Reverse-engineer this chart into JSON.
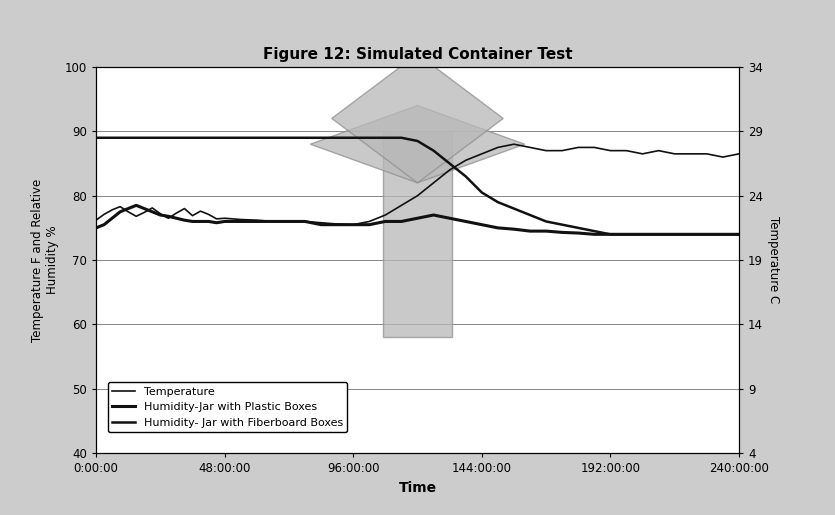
{
  "title": "Figure 12: Simulated Container Test",
  "xlabel": "Time",
  "ylabel_left": "Temperature F and Relative\nHumidity %",
  "ylabel_right": "Temperature C",
  "ylim_left": [
    40,
    100
  ],
  "ylim_right": [
    4,
    34
  ],
  "yticks_left": [
    40,
    50,
    60,
    70,
    80,
    90,
    100
  ],
  "yticks_right": [
    4,
    9,
    14,
    19,
    24,
    29,
    34
  ],
  "xtick_hours": [
    0,
    48,
    96,
    144,
    192,
    240
  ],
  "xtick_labels": [
    "0:00:00",
    "48:00:00",
    "96:00:00",
    "144:00:00",
    "192:00:00",
    "240:00:00"
  ],
  "time_hours": [
    0,
    3,
    6,
    9,
    12,
    15,
    18,
    21,
    24,
    27,
    30,
    33,
    36,
    39,
    42,
    45,
    48,
    54,
    60,
    66,
    72,
    78,
    84,
    90,
    96,
    102,
    108,
    114,
    120,
    126,
    132,
    138,
    144,
    150,
    156,
    162,
    168,
    174,
    180,
    186,
    192,
    198,
    204,
    210,
    216,
    222,
    228,
    234,
    240
  ],
  "temperature": [
    76.2,
    77.1,
    77.8,
    78.3,
    77.5,
    76.8,
    77.4,
    78.1,
    77.2,
    76.5,
    77.3,
    78.0,
    76.9,
    77.6,
    77.1,
    76.4,
    76.5,
    76.3,
    76.2,
    76.0,
    76.0,
    76.0,
    75.8,
    75.6,
    75.5,
    76.0,
    77.0,
    78.5,
    80.0,
    82.0,
    84.0,
    85.5,
    86.5,
    87.5,
    88.0,
    87.5,
    87.0,
    87.0,
    87.5,
    87.5,
    87.0,
    87.0,
    86.5,
    87.0,
    86.5,
    86.5,
    86.5,
    86.0,
    86.5
  ],
  "humidity_plastic": [
    75.0,
    75.5,
    76.5,
    77.5,
    78.0,
    78.5,
    78.0,
    77.5,
    77.0,
    76.8,
    76.5,
    76.2,
    76.0,
    76.0,
    76.0,
    75.8,
    76.0,
    76.0,
    76.0,
    76.0,
    76.0,
    76.0,
    75.5,
    75.5,
    75.5,
    75.5,
    76.0,
    76.0,
    76.5,
    77.0,
    76.5,
    76.0,
    75.5,
    75.0,
    74.8,
    74.5,
    74.5,
    74.3,
    74.2,
    74.0,
    74.0,
    74.0,
    74.0,
    74.0,
    74.0,
    74.0,
    74.0,
    74.0,
    74.0
  ],
  "humidity_fiber": [
    89.0,
    89.0,
    89.0,
    89.0,
    89.0,
    89.0,
    89.0,
    89.0,
    89.0,
    89.0,
    89.0,
    89.0,
    89.0,
    89.0,
    89.0,
    89.0,
    89.0,
    89.0,
    89.0,
    89.0,
    89.0,
    89.0,
    89.0,
    89.0,
    89.0,
    89.0,
    89.0,
    89.0,
    88.5,
    87.0,
    85.0,
    83.0,
    80.5,
    79.0,
    78.0,
    77.0,
    76.0,
    75.5,
    75.0,
    74.5,
    74.0,
    74.0,
    74.0,
    74.0,
    74.0,
    74.0,
    74.0,
    74.0,
    74.0
  ],
  "legend_labels": [
    "Temperature",
    "Humidity-Jar with Plastic Boxes",
    "Humidity- Jar with Fiberboard Boxes"
  ],
  "line_color": "#111111",
  "temp_lw": 1.2,
  "plastic_lw": 2.2,
  "fiber_lw": 1.8,
  "bg_color": "#d8d8d8",
  "plot_bg": "#ffffff",
  "outer_bg": "#cccccc",
  "grid_color": "#888888",
  "container_gray": "#b8b8b8",
  "container_edge": "#909090"
}
